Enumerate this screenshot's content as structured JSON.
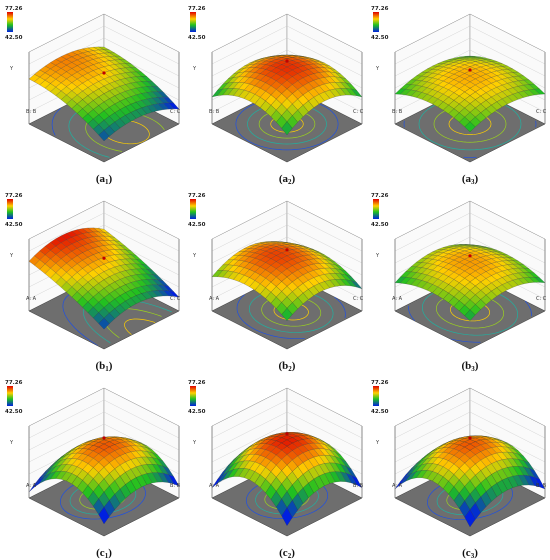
{
  "panels": [
    {
      "label": [
        "(a",
        "1",
        ")"
      ],
      "legend_max": "77.26",
      "legend_min": "42.50",
      "x_axis": "B: B",
      "y_axis": "C: C",
      "z_axis": "Y"
    },
    {
      "label": [
        "(a",
        "2",
        ")"
      ],
      "legend_max": "77.26",
      "legend_min": "42.50",
      "x_axis": "B: B",
      "y_axis": "C: C",
      "z_axis": "Y"
    },
    {
      "label": [
        "(a",
        "3",
        ")"
      ],
      "legend_max": "77.26",
      "legend_min": "42.50",
      "x_axis": "B: B",
      "y_axis": "C: C",
      "z_axis": "Y"
    },
    {
      "label": [
        "(b",
        "1",
        ")"
      ],
      "legend_max": "77.26",
      "legend_min": "42.50",
      "x_axis": "A: A",
      "y_axis": "C: C",
      "z_axis": "Y"
    },
    {
      "label": [
        "(b",
        "2",
        ")"
      ],
      "legend_max": "77.26",
      "legend_min": "42.50",
      "x_axis": "A: A",
      "y_axis": "C: C",
      "z_axis": "Y"
    },
    {
      "label": [
        "(b",
        "3",
        ")"
      ],
      "legend_max": "77.26",
      "legend_min": "42.50",
      "x_axis": "A: A",
      "y_axis": "C: C",
      "z_axis": "Y"
    },
    {
      "label": [
        "(c",
        "1",
        ")"
      ],
      "legend_max": "77.26",
      "legend_min": "42.50",
      "x_axis": "A: A",
      "y_axis": "B: B",
      "z_axis": "Y"
    },
    {
      "label": [
        "(c",
        "2",
        ")"
      ],
      "legend_max": "77.26",
      "legend_min": "42.50",
      "x_axis": "A: A",
      "y_axis": "B: B",
      "z_axis": "Y"
    },
    {
      "label": [
        "(c",
        "3",
        ")"
      ],
      "legend_max": "77.26",
      "legend_min": "42.50",
      "x_axis": "A: A",
      "y_axis": "B: B",
      "z_axis": "Y"
    }
  ]
}
